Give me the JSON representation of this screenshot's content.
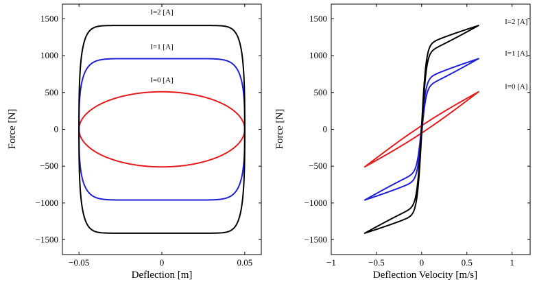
{
  "chart_data": [
    {
      "type": "line",
      "title": "",
      "xlabel": "Deflection [m]",
      "ylabel": "Force [N]",
      "xlim": [
        -0.06,
        0.06
      ],
      "ylim": [
        -1700,
        1700
      ],
      "xticks": [
        -0.05,
        0,
        0.05
      ],
      "xtick_labels": [
        "−0.05",
        "0",
        "0.05"
      ],
      "yticks": [
        -1500,
        -1000,
        -500,
        0,
        500,
        1000,
        1500
      ],
      "ytick_labels": [
        "−1500",
        "−1000",
        "−500",
        "0",
        "500",
        "1000",
        "1500"
      ],
      "grid": false,
      "legend": "none",
      "series": [
        {
          "name": "I=0 [A]",
          "color": "#e41a1c",
          "shape": "ellipse",
          "amplitude_x": 0.05,
          "peak_force": 510,
          "label_at": [
            0,
            640
          ]
        },
        {
          "name": "I=1 [A]",
          "color": "#1f1fd6",
          "shape": "rounded-box",
          "amplitude_x": 0.05,
          "peak_force": 960,
          "label_at": [
            0,
            1090
          ]
        },
        {
          "name": "I=2 [A]",
          "color": "#000000",
          "shape": "rounded-box",
          "amplitude_x": 0.05,
          "peak_force": 1410,
          "label_at": [
            0,
            1560
          ]
        }
      ]
    },
    {
      "type": "line",
      "title": "",
      "xlabel": "Deflection Velocity [m/s]",
      "ylabel": "Force [N]",
      "xlim": [
        -1,
        1.2
      ],
      "ylim": [
        -1700,
        1700
      ],
      "xticks": [
        -1,
        -0.5,
        0,
        0.5,
        1
      ],
      "xtick_labels": [
        "−1",
        "−0.5",
        "0",
        "0.5",
        "1"
      ],
      "yticks": [
        -1500,
        -1000,
        -500,
        0,
        500,
        1000,
        1500
      ],
      "ytick_labels": [
        "−1500",
        "−1000",
        "−500",
        "0",
        "500",
        "1000",
        "1500"
      ],
      "grid": false,
      "legend": "none",
      "series": [
        {
          "name": "I=0 [A]",
          "color": "#e41a1c",
          "v_max": 0.63,
          "peak_force": 510,
          "yield_force": 0,
          "slope": 800,
          "loop_offset": 50,
          "label_at": [
            0.92,
            550
          ]
        },
        {
          "name": "I=1 [A]",
          "color": "#1f1fd6",
          "v_max": 0.63,
          "peak_force": 960,
          "yield_force": 560,
          "slope": 500,
          "loop_offset": 55,
          "label_at": [
            0.92,
            1000
          ]
        },
        {
          "name": "I=2 [A]",
          "color": "#000000",
          "v_max": 0.63,
          "peak_force": 1410,
          "yield_force": 1000,
          "slope": 500,
          "loop_offset": 55,
          "label_at": [
            0.92,
            1430
          ]
        }
      ]
    }
  ]
}
